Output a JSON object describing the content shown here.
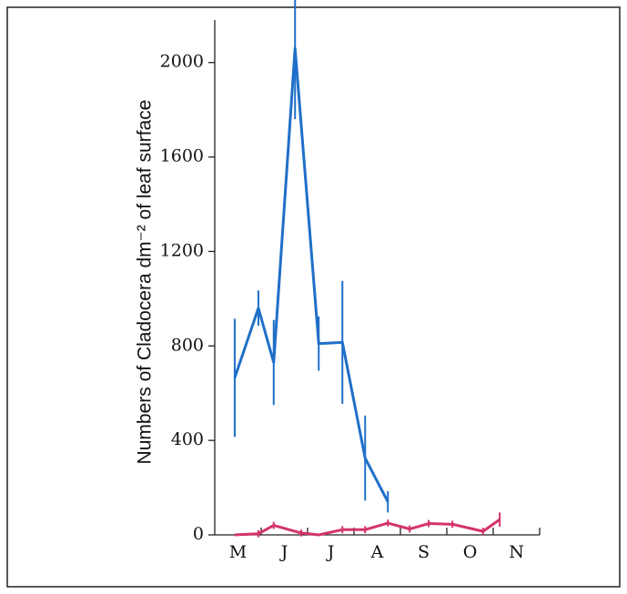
{
  "chart_data": {
    "type": "line",
    "y_label": "Numbers of Cladocera dm⁻² of leaf surface",
    "xlim": [
      0,
      7
    ],
    "ylim": [
      0,
      2180
    ],
    "xticks": [
      {
        "value": 0.5,
        "label": "M"
      },
      {
        "value": 1.5,
        "label": "J"
      },
      {
        "value": 2.5,
        "label": "J"
      },
      {
        "value": 3.5,
        "label": "A"
      },
      {
        "value": 4.5,
        "label": "S"
      },
      {
        "value": 5.5,
        "label": "O"
      },
      {
        "value": 6.5,
        "label": "N"
      }
    ],
    "minor_xticks": [
      1,
      2,
      3,
      4,
      5,
      6,
      7
    ],
    "yticks": [
      0,
      400,
      800,
      1200,
      1600,
      2000
    ],
    "series": [
      {
        "color": "#1f6fc8",
        "x": [
          0.43,
          0.94,
          1.27,
          1.73,
          2.24,
          2.75,
          3.24,
          3.73
        ],
        "values": [
          665,
          960,
          730,
          2060,
          810,
          815,
          325,
          140
        ],
        "errors": [
          250,
          75,
          180,
          300,
          115,
          260,
          180,
          45
        ]
      },
      {
        "color": "#d4336e",
        "x": [
          0.43,
          0.94,
          1.27,
          1.86,
          2.24,
          2.75,
          3.24,
          3.73,
          4.2,
          4.61,
          5.12,
          5.78,
          6.14
        ],
        "values": [
          0,
          5,
          40,
          8,
          0,
          22,
          22,
          50,
          25,
          48,
          45,
          15,
          65
        ],
        "errors": [
          0,
          15,
          15,
          15,
          0,
          15,
          15,
          15,
          15,
          15,
          15,
          15,
          30
        ]
      }
    ]
  }
}
